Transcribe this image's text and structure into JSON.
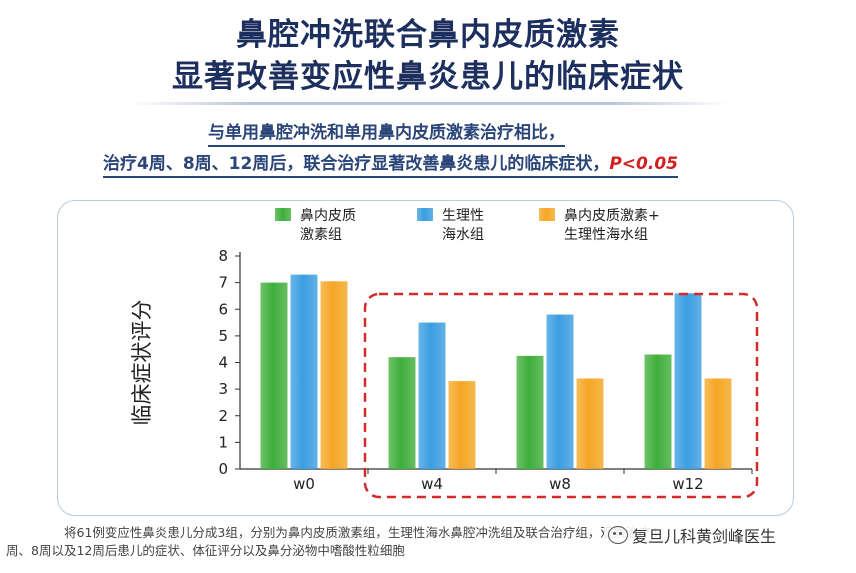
{
  "header": {
    "title_line1": "鼻腔冲洗联合鼻内皮质激素",
    "title_line2": "显著改善变应性鼻炎患儿的临床症状",
    "subtitle_line1": "与单用鼻腔冲洗和单用鼻内皮质激素治疗相比，",
    "subtitle_line2": "治疗4周、8周、12周后，联合治疗显著改善鼻炎患儿的临床症状，",
    "p_value": "P<0.05"
  },
  "chart_data": {
    "type": "bar",
    "categories": [
      "w0",
      "w4",
      "w8",
      "w12"
    ],
    "series": [
      {
        "name": "鼻内皮质\n激素组",
        "color": "#3fae3a",
        "values": [
          7.0,
          4.2,
          4.25,
          4.3
        ]
      },
      {
        "name": "生理性\n海水组",
        "color": "#3a9ee0",
        "values": [
          7.3,
          5.5,
          5.8,
          6.6
        ]
      },
      {
        "name": "鼻内皮质激素+\n生理性海水组",
        "color": "#f5a623",
        "values": [
          7.05,
          3.3,
          3.4,
          3.4
        ]
      }
    ],
    "ylabel": "临床症状评分",
    "xlabel": "",
    "ylim": [
      0,
      8
    ],
    "yticks": [
      0,
      1,
      2,
      3,
      4,
      5,
      6,
      7,
      8
    ],
    "grid": false,
    "legend_position": "top",
    "highlight": {
      "categories": [
        "w4",
        "w8",
        "w12"
      ],
      "style": "red dashed box"
    }
  },
  "footer": {
    "caption_line1": "将61例变应性鼻炎患儿分成3组，分别为鼻内皮质激素组，生理性海水鼻腔冲洗组及联合治疗组，观察治疗4",
    "caption_line2": "周、8周以及12周后患儿的症状、体征评分以及鼻分泌物中嗜酸性粒细胞",
    "watermark": "复旦儿科黄剑峰医生"
  }
}
